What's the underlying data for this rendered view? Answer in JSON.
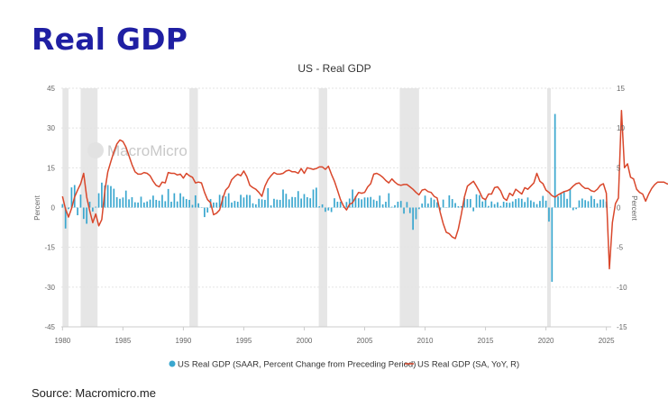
{
  "page": {
    "title": "Real GDP",
    "source": "Source: Macromicro.me",
    "watermark": "MacroMicro"
  },
  "colors": {
    "title": "#1f1fa3",
    "bars": "#3aa7cf",
    "line": "#d9472b",
    "recession": "#e6e6e6"
  },
  "chart_data": {
    "type": "bar",
    "title": "US - Real GDP",
    "ylabel_left": "Percent",
    "ylabel_right": "Percent",
    "x_ticks": [
      1980,
      1985,
      1990,
      1995,
      2000,
      2005,
      2010,
      2015,
      2020,
      2025
    ],
    "y_left_ticks": [
      45,
      30,
      15,
      0,
      -15,
      -30,
      -45
    ],
    "y_right_ticks": [
      15,
      10,
      5,
      0,
      -5,
      -10,
      -15
    ],
    "ylim_left": [
      -45,
      45
    ],
    "ylim_right": [
      -15,
      15
    ],
    "xlim": [
      1979.9,
      2025.4
    ],
    "grid": "horizontal",
    "legend_position": "bottom",
    "recessions": [
      [
        1980.0,
        1980.5
      ],
      [
        1981.5,
        1982.9
      ],
      [
        1990.5,
        1991.2
      ],
      [
        2001.2,
        2001.9
      ],
      [
        2007.9,
        2009.5
      ],
      [
        2020.1,
        2020.4
      ]
    ],
    "series": [
      {
        "name": "US Real GDP (SAAR, Percent Change from Preceding Period)",
        "type": "bar",
        "axis": "left",
        "start": 1980.0,
        "step": 0.25,
        "values": [
          1.3,
          -7.9,
          -0.6,
          7.6,
          8.5,
          -2.9,
          4.9,
          -4.3,
          -6.1,
          2.2,
          -1.5,
          0.3,
          5.4,
          9.4,
          8.3,
          8.5,
          8.1,
          7.1,
          3.9,
          3.3,
          3.8,
          6.4,
          3.1,
          3.9,
          2.0,
          1.9,
          4.1,
          1.9,
          2.3,
          3.0,
          4.5,
          2.9,
          2.6,
          4.8,
          2.4,
          7.0,
          2.2,
          5.4,
          2.3,
          5.4,
          4.1,
          3.2,
          2.9,
          1.0,
          4.6,
          1.6,
          0.1,
          -3.6,
          -1.9,
          3.2,
          1.9,
          1.9,
          4.8,
          4.4,
          4.2,
          5.4,
          1.9,
          2.5,
          2.2,
          4.8,
          3.8,
          4.8,
          4.7,
          1.6,
          1.2,
          3.3,
          3.1,
          2.9,
          7.3,
          0.8,
          3.3,
          3.0,
          2.9,
          6.8,
          5.2,
          3.1,
          4.0,
          3.9,
          6.2,
          3.4,
          5.1,
          3.9,
          3.5,
          6.8,
          7.5,
          0.5,
          1.2,
          -1.6,
          -1.1,
          -1.7,
          3.5,
          2.2,
          2.2,
          0.2,
          2.1,
          3.4,
          6.8,
          4.3,
          3.5,
          3.1,
          3.8,
          3.8,
          4.0,
          3.0,
          2.5,
          4.5,
          1.2,
          2.2,
          5.4,
          0.3,
          0.9,
          2.2,
          2.5,
          -2.3,
          2.1,
          -2.1,
          -8.4,
          -4.4,
          -0.6,
          1.5,
          4.5,
          1.5,
          3.7,
          3.0,
          2.0,
          -1.0,
          3.0,
          0.0,
          4.6,
          3.2,
          1.7,
          0.5,
          0.5,
          3.6,
          3.2,
          3.2,
          -1.4,
          5.0,
          4.7,
          2.3,
          3.3,
          0.6,
          2.3,
          1.3,
          2.0,
          0.6,
          2.2,
          1.9,
          1.8,
          2.3,
          3.2,
          3.5,
          3.3,
          2.1,
          3.8,
          2.7,
          2.1,
          1.3,
          2.5,
          4.4,
          2.6,
          -5.3,
          -28.0,
          35.3,
          4.2,
          5.2,
          6.2,
          3.3,
          7.0,
          -1.0,
          -0.6,
          2.7,
          3.4,
          2.8,
          2.4,
          4.4,
          3.2,
          1.6,
          3.0,
          3.1,
          2.3
        ]
      },
      {
        "name": "US Real GDP (SA, YoY, R)",
        "type": "line",
        "axis": "right",
        "start": 1980.0,
        "step": 0.25,
        "values": [
          1.4,
          -0.2,
          -1.2,
          -0.1,
          1.3,
          2.2,
          3.0,
          4.3,
          1.3,
          -0.4,
          -1.9,
          -0.8,
          -2.3,
          -1.5,
          2.1,
          4.5,
          5.8,
          7.0,
          8.0,
          8.5,
          8.3,
          7.6,
          6.5,
          5.4,
          4.5,
          4.2,
          4.2,
          4.4,
          4.3,
          4.0,
          3.3,
          2.8,
          2.6,
          3.2,
          3.1,
          4.4,
          4.3,
          4.3,
          4.1,
          4.2,
          3.7,
          4.3,
          4.0,
          3.8,
          3.1,
          3.2,
          3.1,
          1.9,
          1.0,
          0.6,
          -0.9,
          -0.7,
          -0.3,
          1.1,
          2.2,
          2.6,
          3.5,
          3.9,
          4.2,
          4.0,
          4.6,
          3.9,
          2.8,
          2.5,
          2.3,
          1.9,
          1.4,
          2.7,
          3.5,
          4.0,
          4.4,
          4.2,
          4.2,
          4.3,
          4.6,
          4.7,
          4.5,
          4.5,
          4.3,
          4.9,
          4.3,
          5.0,
          4.9,
          4.8,
          4.9,
          5.1,
          5.1,
          4.8,
          5.2,
          4.2,
          3.3,
          2.2,
          1.0,
          0.2,
          -0.3,
          0.4,
          0.6,
          1.3,
          1.9,
          1.8,
          1.9,
          2.6,
          3.0,
          4.2,
          4.3,
          4.1,
          3.8,
          3.4,
          3.1,
          3.6,
          3.2,
          2.9,
          2.8,
          2.9,
          2.9,
          2.6,
          2.3,
          1.9,
          1.6,
          2.2,
          2.3,
          2.0,
          1.9,
          1.4,
          1.2,
          -0.6,
          -2.0,
          -3.1,
          -3.3,
          -3.7,
          -3.9,
          -2.7,
          -0.8,
          1.3,
          2.7,
          3.0,
          3.3,
          2.7,
          2.0,
          1.2,
          1.0,
          1.7,
          1.7,
          2.5,
          2.6,
          2.1,
          1.2,
          0.9,
          1.8,
          1.5,
          2.3,
          2.0,
          1.7,
          2.5,
          2.3,
          2.7,
          3.1,
          4.3,
          3.3,
          3.0,
          2.2,
          1.9,
          1.5,
          1.3,
          1.6,
          1.8,
          2.0,
          2.1,
          2.3,
          2.7,
          3.0,
          3.1,
          2.7,
          2.4,
          2.4,
          2.1,
          2.0,
          2.3,
          2.8,
          3.0,
          1.8,
          -7.7,
          -1.9,
          0.5,
          1.2,
          12.2,
          5.0,
          5.5,
          3.8,
          3.6,
          2.3,
          1.9,
          1.7,
          0.8,
          1.7,
          2.4,
          2.9,
          3.2,
          3.2,
          3.2,
          3.0,
          2.9,
          2.7,
          3.0,
          2.7,
          2.5,
          2.3
        ]
      }
    ]
  }
}
